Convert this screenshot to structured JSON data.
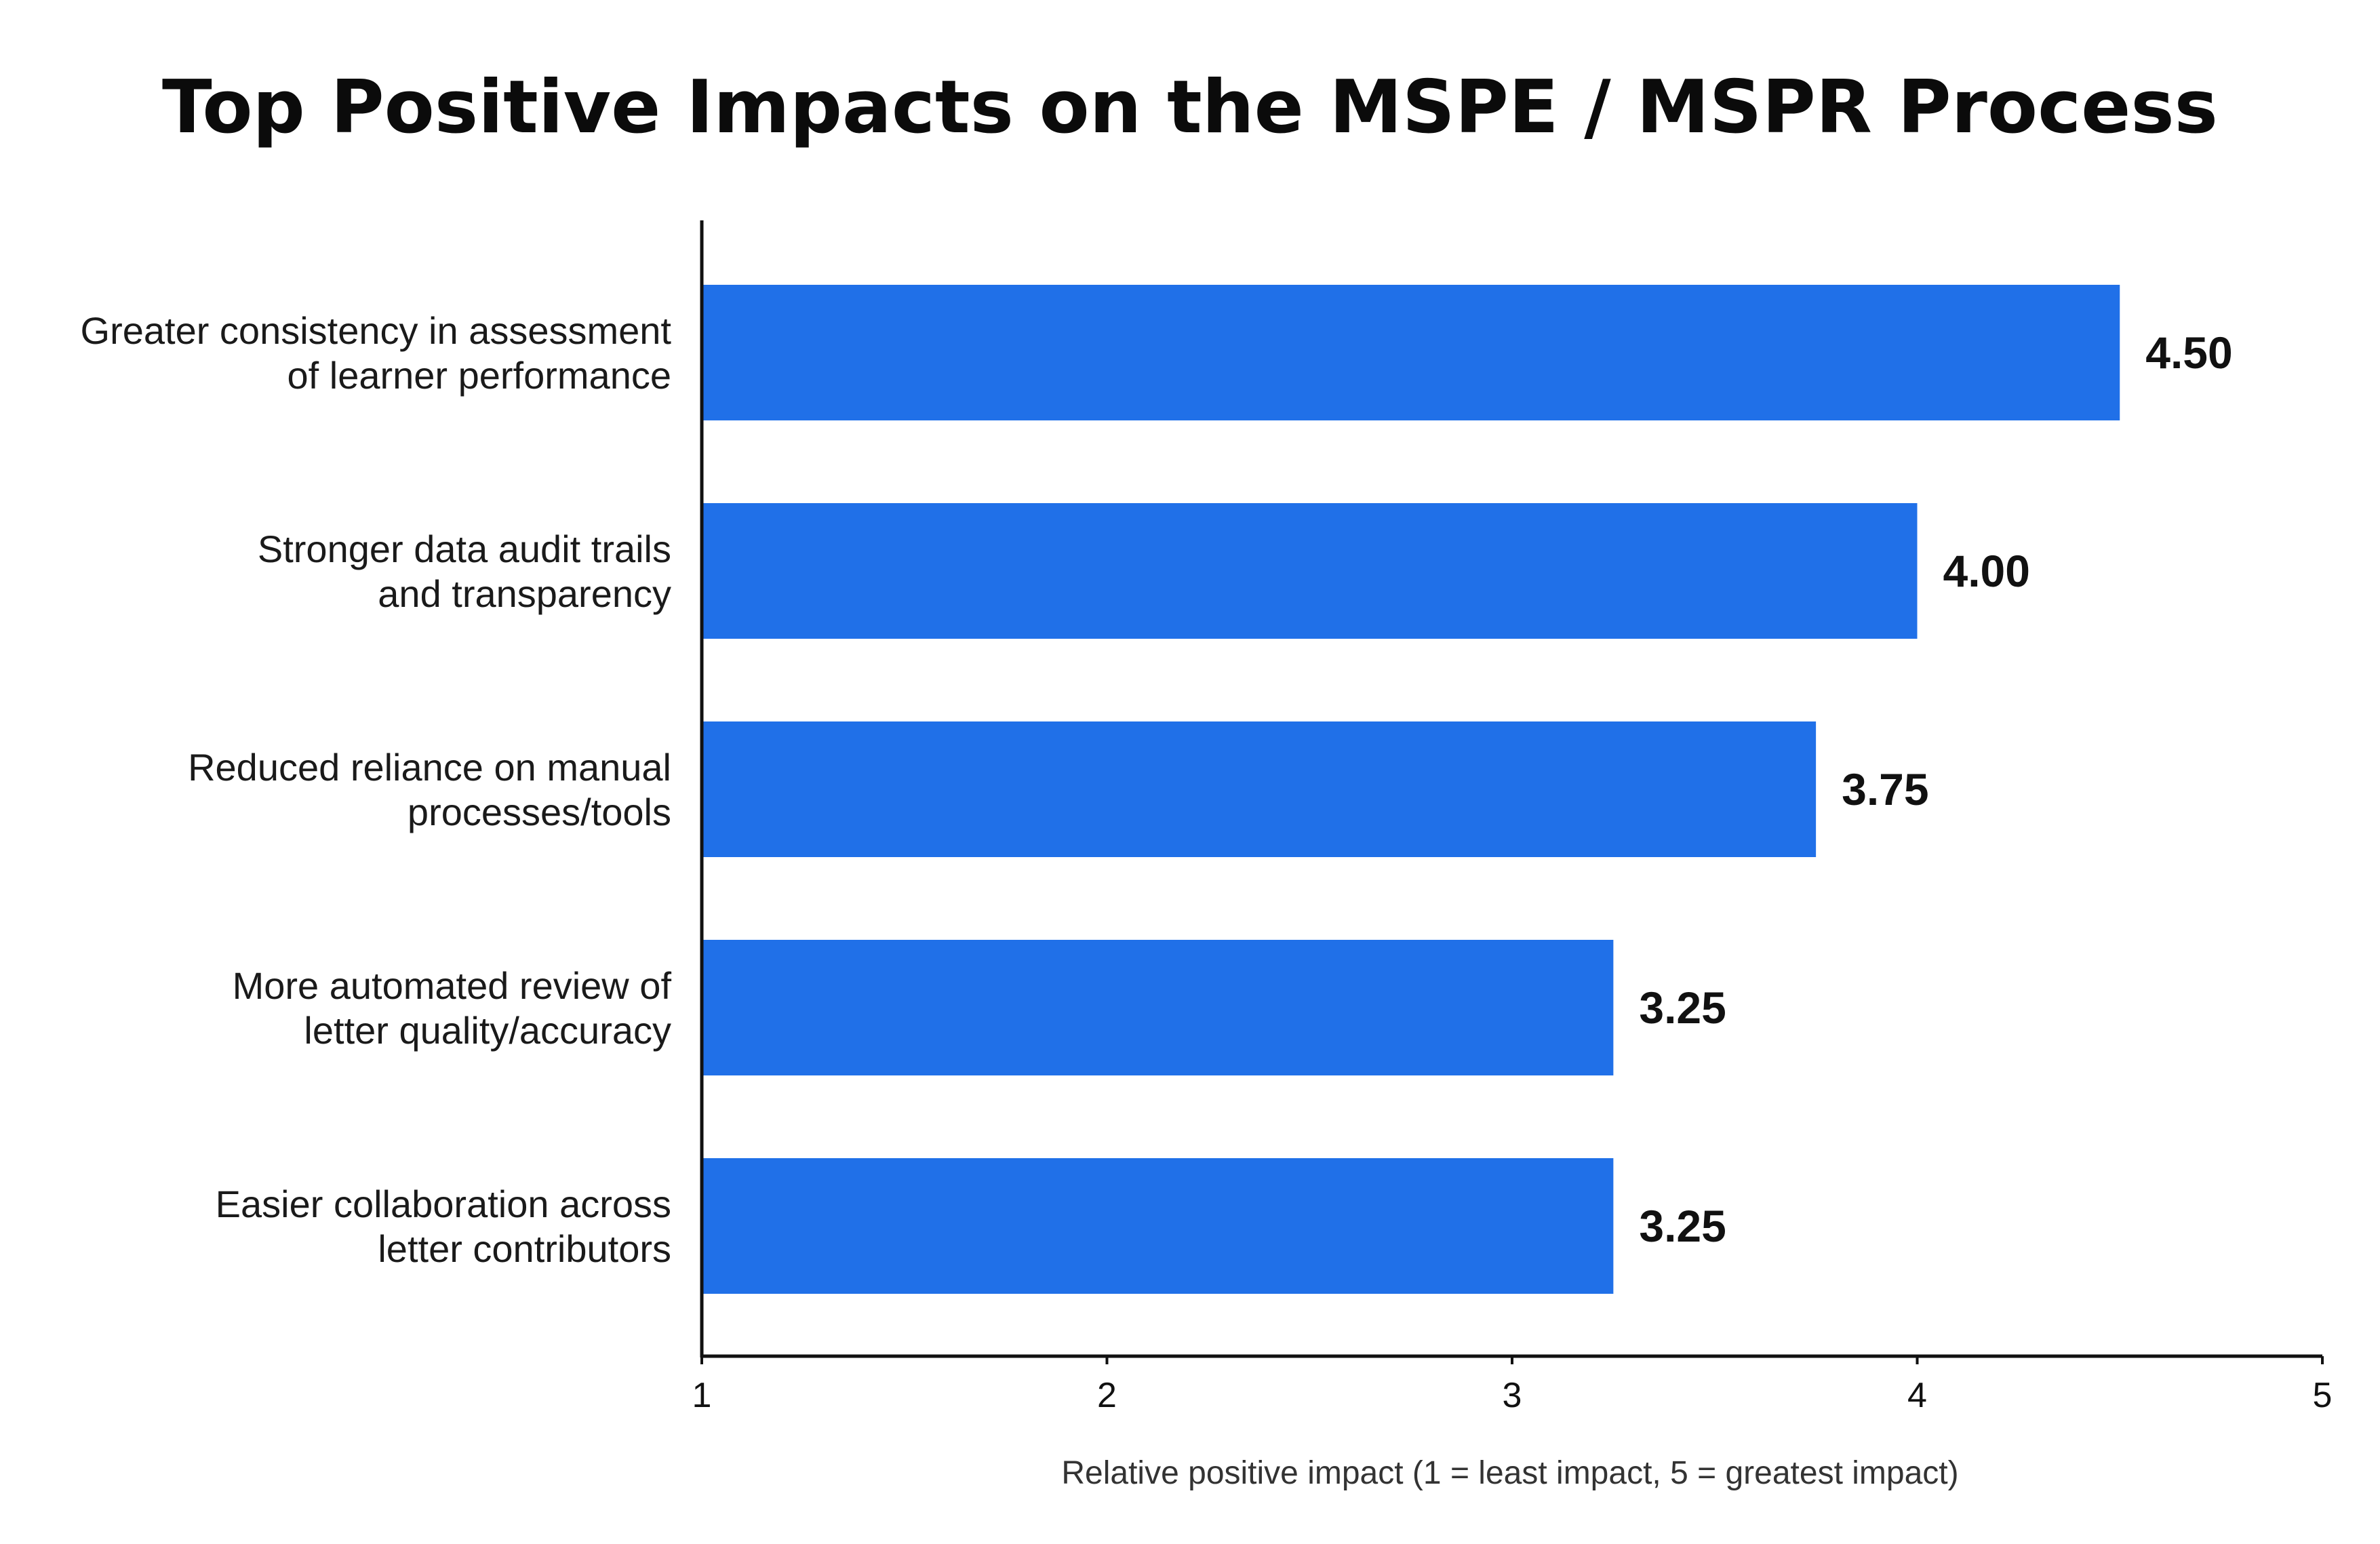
{
  "chart_data": {
    "type": "bar",
    "orientation": "horizontal",
    "title": "Top Positive Impacts on the MSPE / MSPR Process",
    "categories": [
      [
        "Greater consistency in assessment",
        "of learner performance"
      ],
      [
        "Stronger data audit trails",
        "and transparency"
      ],
      [
        "Reduced reliance on manual",
        "processes/tools"
      ],
      [
        "More automated review of",
        "letter quality/accuracy"
      ],
      [
        "Easier collaboration across",
        "letter contributors"
      ]
    ],
    "values": [
      4.5,
      4.0,
      3.75,
      3.25,
      3.25
    ],
    "value_labels": [
      "4.50",
      "4.00",
      "3.75",
      "3.25",
      "3.25"
    ],
    "xlabel": "Relative positive impact (1 = least impact, 5 = greatest impact)",
    "ylabel": "",
    "xlim": [
      1,
      5
    ],
    "xticks": [
      1,
      2,
      3,
      4,
      5
    ],
    "grid": false,
    "legend": "none",
    "bar_color": "#2070e8"
  }
}
